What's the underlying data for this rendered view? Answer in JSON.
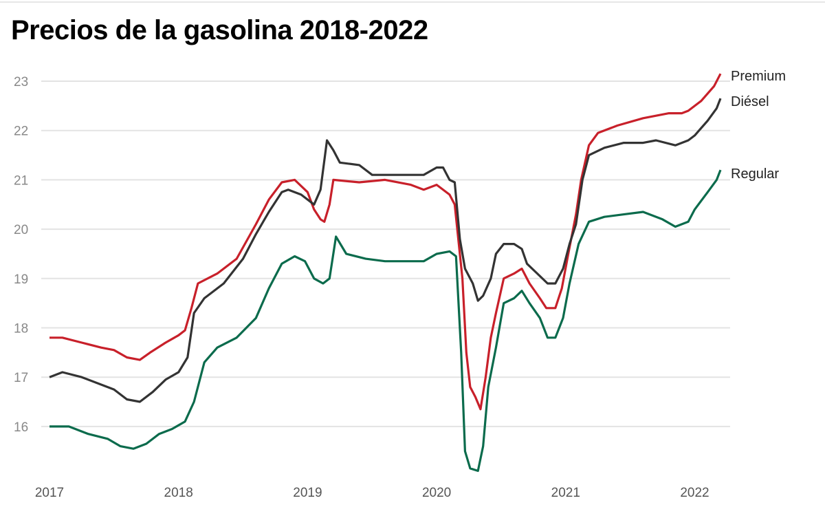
{
  "chart_data": {
    "type": "line",
    "title": "Precios de la gasolina 2018-2022",
    "xlabel": "",
    "ylabel": "",
    "xlim": [
      2017,
      2022.2
    ],
    "ylim": [
      15,
      23.2
    ],
    "x_ticks": [
      "2017",
      "2018",
      "2019",
      "2020",
      "2021",
      "2022"
    ],
    "y_ticks": [
      "16",
      "17",
      "18",
      "19",
      "20",
      "21",
      "22",
      "23"
    ],
    "grid": "horizontal",
    "legend": "direct labels at right end",
    "series": [
      {
        "name": "Premium",
        "color": "#c8202a",
        "points": [
          [
            2017.0,
            17.8
          ],
          [
            2017.1,
            17.8
          ],
          [
            2017.25,
            17.7
          ],
          [
            2017.4,
            17.6
          ],
          [
            2017.5,
            17.55
          ],
          [
            2017.6,
            17.4
          ],
          [
            2017.7,
            17.35
          ],
          [
            2017.78,
            17.5
          ],
          [
            2017.9,
            17.7
          ],
          [
            2018.0,
            17.85
          ],
          [
            2018.05,
            17.95
          ],
          [
            2018.1,
            18.4
          ],
          [
            2018.15,
            18.9
          ],
          [
            2018.3,
            19.1
          ],
          [
            2018.45,
            19.4
          ],
          [
            2018.6,
            20.1
          ],
          [
            2018.7,
            20.6
          ],
          [
            2018.8,
            20.95
          ],
          [
            2018.9,
            21.0
          ],
          [
            2019.0,
            20.75
          ],
          [
            2019.05,
            20.4
          ],
          [
            2019.1,
            20.2
          ],
          [
            2019.13,
            20.15
          ],
          [
            2019.17,
            20.5
          ],
          [
            2019.2,
            21.0
          ],
          [
            2019.4,
            20.95
          ],
          [
            2019.6,
            21.0
          ],
          [
            2019.8,
            20.9
          ],
          [
            2019.9,
            20.8
          ],
          [
            2020.0,
            20.9
          ],
          [
            2020.1,
            20.7
          ],
          [
            2020.14,
            20.5
          ],
          [
            2020.2,
            19.0
          ],
          [
            2020.23,
            17.5
          ],
          [
            2020.26,
            16.8
          ],
          [
            2020.3,
            16.6
          ],
          [
            2020.34,
            16.35
          ],
          [
            2020.38,
            17.0
          ],
          [
            2020.42,
            17.8
          ],
          [
            2020.46,
            18.3
          ],
          [
            2020.52,
            19.0
          ],
          [
            2020.6,
            19.1
          ],
          [
            2020.66,
            19.2
          ],
          [
            2020.72,
            18.9
          ],
          [
            2020.8,
            18.6
          ],
          [
            2020.85,
            18.4
          ],
          [
            2020.92,
            18.4
          ],
          [
            2020.97,
            18.8
          ],
          [
            2021.02,
            19.5
          ],
          [
            2021.08,
            20.3
          ],
          [
            2021.12,
            21.0
          ],
          [
            2021.18,
            21.7
          ],
          [
            2021.25,
            21.95
          ],
          [
            2021.4,
            22.1
          ],
          [
            2021.6,
            22.25
          ],
          [
            2021.8,
            22.35
          ],
          [
            2021.9,
            22.35
          ],
          [
            2021.95,
            22.4
          ],
          [
            2022.05,
            22.6
          ],
          [
            2022.15,
            22.9
          ],
          [
            2022.2,
            23.15
          ]
        ]
      },
      {
        "name": "Diésel",
        "color": "#333333",
        "points": [
          [
            2017.0,
            17.0
          ],
          [
            2017.1,
            17.1
          ],
          [
            2017.25,
            17.0
          ],
          [
            2017.4,
            16.85
          ],
          [
            2017.5,
            16.75
          ],
          [
            2017.6,
            16.55
          ],
          [
            2017.7,
            16.5
          ],
          [
            2017.8,
            16.7
          ],
          [
            2017.9,
            16.95
          ],
          [
            2018.0,
            17.1
          ],
          [
            2018.07,
            17.4
          ],
          [
            2018.12,
            18.3
          ],
          [
            2018.2,
            18.6
          ],
          [
            2018.35,
            18.9
          ],
          [
            2018.5,
            19.4
          ],
          [
            2018.6,
            19.9
          ],
          [
            2018.7,
            20.35
          ],
          [
            2018.8,
            20.75
          ],
          [
            2018.85,
            20.8
          ],
          [
            2018.95,
            20.7
          ],
          [
            2019.05,
            20.5
          ],
          [
            2019.1,
            20.8
          ],
          [
            2019.15,
            21.8
          ],
          [
            2019.2,
            21.6
          ],
          [
            2019.25,
            21.35
          ],
          [
            2019.4,
            21.3
          ],
          [
            2019.5,
            21.1
          ],
          [
            2019.6,
            21.1
          ],
          [
            2019.8,
            21.1
          ],
          [
            2019.9,
            21.1
          ],
          [
            2020.0,
            21.25
          ],
          [
            2020.05,
            21.25
          ],
          [
            2020.1,
            21.0
          ],
          [
            2020.14,
            20.95
          ],
          [
            2020.18,
            19.8
          ],
          [
            2020.22,
            19.2
          ],
          [
            2020.28,
            18.9
          ],
          [
            2020.32,
            18.55
          ],
          [
            2020.36,
            18.65
          ],
          [
            2020.42,
            19.0
          ],
          [
            2020.46,
            19.5
          ],
          [
            2020.52,
            19.7
          ],
          [
            2020.6,
            19.7
          ],
          [
            2020.66,
            19.6
          ],
          [
            2020.7,
            19.3
          ],
          [
            2020.78,
            19.1
          ],
          [
            2020.86,
            18.9
          ],
          [
            2020.92,
            18.9
          ],
          [
            2020.98,
            19.2
          ],
          [
            2021.03,
            19.7
          ],
          [
            2021.08,
            20.1
          ],
          [
            2021.13,
            21.0
          ],
          [
            2021.18,
            21.5
          ],
          [
            2021.3,
            21.65
          ],
          [
            2021.45,
            21.75
          ],
          [
            2021.6,
            21.75
          ],
          [
            2021.7,
            21.8
          ],
          [
            2021.85,
            21.7
          ],
          [
            2021.95,
            21.8
          ],
          [
            2022.0,
            21.9
          ],
          [
            2022.1,
            22.2
          ],
          [
            2022.17,
            22.45
          ],
          [
            2022.2,
            22.65
          ]
        ]
      },
      {
        "name": "Regular",
        "color": "#0b6b4c",
        "points": [
          [
            2017.0,
            16.0
          ],
          [
            2017.15,
            16.0
          ],
          [
            2017.3,
            15.85
          ],
          [
            2017.45,
            15.75
          ],
          [
            2017.55,
            15.6
          ],
          [
            2017.65,
            15.55
          ],
          [
            2017.75,
            15.65
          ],
          [
            2017.85,
            15.85
          ],
          [
            2017.95,
            15.95
          ],
          [
            2018.05,
            16.1
          ],
          [
            2018.12,
            16.5
          ],
          [
            2018.2,
            17.3
          ],
          [
            2018.3,
            17.6
          ],
          [
            2018.45,
            17.8
          ],
          [
            2018.6,
            18.2
          ],
          [
            2018.7,
            18.8
          ],
          [
            2018.8,
            19.3
          ],
          [
            2018.9,
            19.45
          ],
          [
            2018.98,
            19.35
          ],
          [
            2019.05,
            19.0
          ],
          [
            2019.12,
            18.9
          ],
          [
            2019.17,
            19.0
          ],
          [
            2019.22,
            19.85
          ],
          [
            2019.3,
            19.5
          ],
          [
            2019.45,
            19.4
          ],
          [
            2019.6,
            19.35
          ],
          [
            2019.75,
            19.35
          ],
          [
            2019.9,
            19.35
          ],
          [
            2020.0,
            19.5
          ],
          [
            2020.1,
            19.55
          ],
          [
            2020.15,
            19.45
          ],
          [
            2020.19,
            17.5
          ],
          [
            2020.22,
            15.5
          ],
          [
            2020.26,
            15.15
          ],
          [
            2020.32,
            15.1
          ],
          [
            2020.36,
            15.6
          ],
          [
            2020.4,
            16.8
          ],
          [
            2020.46,
            17.6
          ],
          [
            2020.52,
            18.5
          ],
          [
            2020.6,
            18.6
          ],
          [
            2020.66,
            18.75
          ],
          [
            2020.72,
            18.5
          ],
          [
            2020.8,
            18.2
          ],
          [
            2020.86,
            17.8
          ],
          [
            2020.92,
            17.8
          ],
          [
            2020.98,
            18.2
          ],
          [
            2021.03,
            18.9
          ],
          [
            2021.1,
            19.7
          ],
          [
            2021.18,
            20.15
          ],
          [
            2021.3,
            20.25
          ],
          [
            2021.45,
            20.3
          ],
          [
            2021.6,
            20.35
          ],
          [
            2021.75,
            20.2
          ],
          [
            2021.85,
            20.05
          ],
          [
            2021.95,
            20.15
          ],
          [
            2022.0,
            20.4
          ],
          [
            2022.1,
            20.75
          ],
          [
            2022.17,
            21.0
          ],
          [
            2022.2,
            21.2
          ]
        ]
      }
    ]
  }
}
